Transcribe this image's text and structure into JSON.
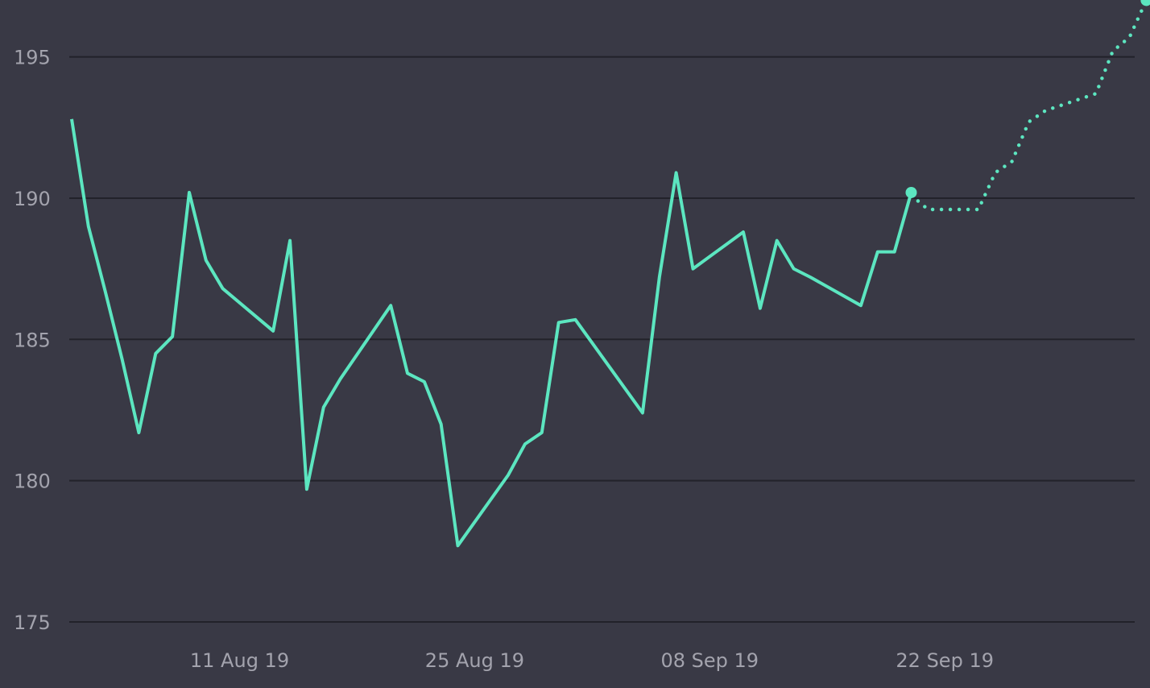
{
  "chart_data": {
    "type": "line",
    "title": "",
    "xlabel": "",
    "ylabel": "",
    "ylim": [
      175,
      196.5
    ],
    "y_ticks": [
      175,
      180,
      185,
      190,
      195
    ],
    "x_ticks": [
      {
        "date": "2019-08-11",
        "label": "11 Aug 19"
      },
      {
        "date": "2019-08-25",
        "label": "25 Aug 19"
      },
      {
        "date": "2019-09-08",
        "label": "08 Sep 19"
      },
      {
        "date": "2019-09-22",
        "label": "22 Sep 19"
      }
    ],
    "grid": true,
    "legend": "none",
    "colors": {
      "background": "#393945",
      "gridline": "#22222a",
      "tick_label": "#a3a3ad",
      "line": "#5ce6c0"
    },
    "series": [
      {
        "style": "solid",
        "end_marker": true,
        "x": [
          "2019-08-01",
          "2019-08-02",
          "2019-08-03",
          "2019-08-04",
          "2019-08-05",
          "2019-08-06",
          "2019-08-07",
          "2019-08-08",
          "2019-08-09",
          "2019-08-10",
          "2019-08-13",
          "2019-08-14",
          "2019-08-15",
          "2019-08-16",
          "2019-08-17",
          "2019-08-20",
          "2019-08-21",
          "2019-08-22",
          "2019-08-23",
          "2019-08-24",
          "2019-08-27",
          "2019-08-28",
          "2019-08-29",
          "2019-08-30",
          "2019-08-31",
          "2019-09-04",
          "2019-09-05",
          "2019-09-06",
          "2019-09-07",
          "2019-09-10",
          "2019-09-11",
          "2019-09-12",
          "2019-09-13",
          "2019-09-14",
          "2019-09-17",
          "2019-09-18",
          "2019-09-19",
          "2019-09-20"
        ],
        "y": [
          192.8,
          189.0,
          186.7,
          184.3,
          181.7,
          184.5,
          185.1,
          190.2,
          187.8,
          186.8,
          185.3,
          188.5,
          179.7,
          182.6,
          183.6,
          186.2,
          183.8,
          183.5,
          182.0,
          177.7,
          180.2,
          181.3,
          181.7,
          185.6,
          185.7,
          182.4,
          187.2,
          190.9,
          187.5,
          188.8,
          186.1,
          188.5,
          187.5,
          187.2,
          186.2,
          188.1,
          188.1,
          190.2
        ]
      },
      {
        "style": "dotted",
        "end_marker": true,
        "x": [
          "2019-09-20",
          "2019-09-21",
          "2019-09-22",
          "2019-09-23",
          "2019-09-24",
          "2019-09-25",
          "2019-09-26",
          "2019-09-27",
          "2019-09-28",
          "2019-09-29",
          "2019-09-30",
          "2019-10-01",
          "2019-10-02",
          "2019-10-03",
          "2019-10-04"
        ],
        "y": [
          190.1,
          189.6,
          189.6,
          189.6,
          189.6,
          190.9,
          191.3,
          192.7,
          193.1,
          193.3,
          193.5,
          193.7,
          195.2,
          195.7,
          197.0
        ]
      }
    ]
  }
}
